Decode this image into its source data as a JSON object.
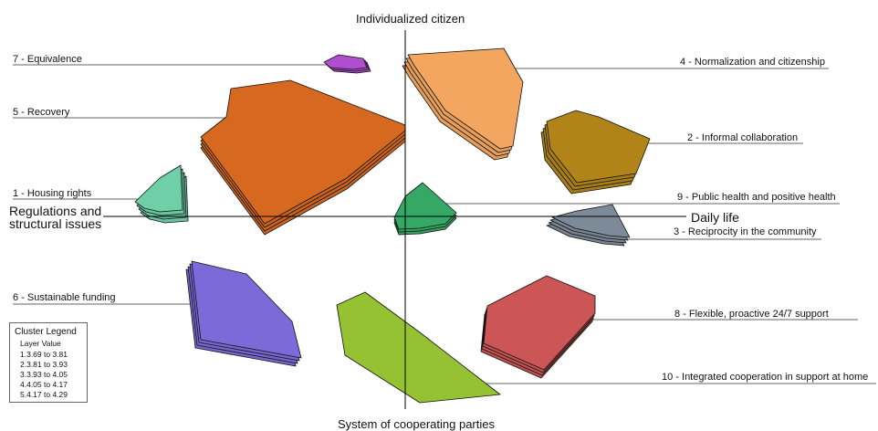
{
  "axes": {
    "top": "Individualized citizen",
    "bottom": "System of cooperating parties",
    "left": "Regulations and\nstructural issues",
    "right": "Daily life"
  },
  "clusters": [
    {
      "id": 1,
      "label": "1 - Housing rights",
      "color": "#6fcfa7"
    },
    {
      "id": 2,
      "label": "2 - Informal collaboration",
      "color": "#b08418"
    },
    {
      "id": 3,
      "label": "3 - Reciprocity in the community",
      "color": "#7d8a98"
    },
    {
      "id": 4,
      "label": "4 - Normalization and citizenship",
      "color": "#f2a660"
    },
    {
      "id": 5,
      "label": "5 - Recovery",
      "color": "#d6691f"
    },
    {
      "id": 6,
      "label": "6 - Sustainable funding",
      "color": "#7b6ad8"
    },
    {
      "id": 7,
      "label": "7 - Equivalence",
      "color": "#b04ed0"
    },
    {
      "id": 8,
      "label": "8 - Flexible, proactive 24/7 support",
      "color": "#cc5656"
    },
    {
      "id": 9,
      "label": "9 - Public health and positive health",
      "color": "#36a865"
    },
    {
      "id": 10,
      "label": "10 - Integrated cooperation in support at home",
      "color": "#94c232"
    }
  ],
  "legend": {
    "title": "Cluster Legend",
    "subtitle": "Layer Value",
    "items": [
      "1.3.69 to 3.81",
      "2.3.81 to 3.93",
      "3.3.93 to 4.05",
      "4.4.05 to 4.17",
      "5.4.17 to 4.29"
    ]
  }
}
